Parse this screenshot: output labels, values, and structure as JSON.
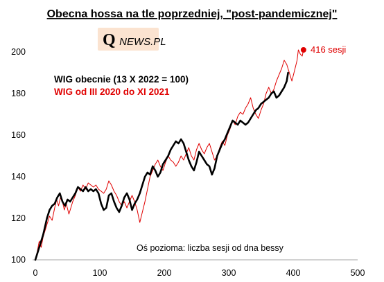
{
  "logo": {
    "initial": "Q",
    "rest": "NEWS.PL",
    "bg": "#fbe3d0"
  },
  "chart_data": {
    "type": "line",
    "title": "Obecna hossa na tle poprzedniej, \"post-pandemicznej\"",
    "xlabel": "",
    "ylabel": "",
    "xlim": [
      0,
      500
    ],
    "ylim": [
      100,
      200
    ],
    "xticks": [
      0,
      100,
      200,
      300,
      400,
      500
    ],
    "yticks": [
      100,
      120,
      140,
      160,
      180,
      200
    ],
    "grid": false,
    "note": "Oś pozioma: liczba sesji od dna bessy",
    "end_label": "416 sesji",
    "series": [
      {
        "name": "WIG od III 2020 do XI 2021",
        "color": "#e00000",
        "width": 1,
        "points": [
          [
            0,
            100
          ],
          [
            3,
            104
          ],
          [
            6,
            109
          ],
          [
            9,
            106
          ],
          [
            12,
            111
          ],
          [
            15,
            114
          ],
          [
            18,
            117
          ],
          [
            22,
            121
          ],
          [
            26,
            119
          ],
          [
            30,
            125
          ],
          [
            33,
            129
          ],
          [
            36,
            126
          ],
          [
            39,
            130
          ],
          [
            42,
            128
          ],
          [
            45,
            124
          ],
          [
            48,
            127
          ],
          [
            52,
            122
          ],
          [
            55,
            125
          ],
          [
            58,
            128
          ],
          [
            62,
            131
          ],
          [
            66,
            135
          ],
          [
            70,
            133
          ],
          [
            74,
            136
          ],
          [
            78,
            134
          ],
          [
            82,
            137
          ],
          [
            86,
            136
          ],
          [
            90,
            135
          ],
          [
            94,
            136
          ],
          [
            98,
            134
          ],
          [
            102,
            133
          ],
          [
            106,
            132
          ],
          [
            110,
            134
          ],
          [
            114,
            138
          ],
          [
            118,
            136
          ],
          [
            122,
            133
          ],
          [
            126,
            131
          ],
          [
            130,
            128
          ],
          [
            134,
            126
          ],
          [
            138,
            128
          ],
          [
            142,
            125
          ],
          [
            146,
            128
          ],
          [
            150,
            131
          ],
          [
            154,
            128
          ],
          [
            158,
            124
          ],
          [
            162,
            118
          ],
          [
            166,
            123
          ],
          [
            170,
            128
          ],
          [
            174,
            134
          ],
          [
            178,
            140
          ],
          [
            182,
            143
          ],
          [
            186,
            146
          ],
          [
            190,
            148
          ],
          [
            194,
            145
          ],
          [
            198,
            143
          ],
          [
            202,
            147
          ],
          [
            206,
            150
          ],
          [
            210,
            148
          ],
          [
            214,
            147
          ],
          [
            218,
            145
          ],
          [
            222,
            147
          ],
          [
            226,
            150
          ],
          [
            230,
            148
          ],
          [
            234,
            151
          ],
          [
            238,
            154
          ],
          [
            242,
            150
          ],
          [
            246,
            148
          ],
          [
            250,
            153
          ],
          [
            254,
            156
          ],
          [
            258,
            153
          ],
          [
            262,
            151
          ],
          [
            266,
            154
          ],
          [
            270,
            156
          ],
          [
            274,
            152
          ],
          [
            278,
            148
          ],
          [
            282,
            150
          ],
          [
            286,
            154
          ],
          [
            290,
            157
          ],
          [
            294,
            155
          ],
          [
            298,
            160
          ],
          [
            302,
            163
          ],
          [
            306,
            167
          ],
          [
            310,
            165
          ],
          [
            314,
            169
          ],
          [
            318,
            171
          ],
          [
            322,
            170
          ],
          [
            326,
            173
          ],
          [
            330,
            175
          ],
          [
            334,
            178
          ],
          [
            338,
            173
          ],
          [
            342,
            170
          ],
          [
            346,
            168
          ],
          [
            350,
            172
          ],
          [
            354,
            175
          ],
          [
            358,
            180
          ],
          [
            362,
            183
          ],
          [
            366,
            180
          ],
          [
            370,
            182
          ],
          [
            374,
            186
          ],
          [
            378,
            189
          ],
          [
            382,
            192
          ],
          [
            386,
            196
          ],
          [
            390,
            194
          ],
          [
            394,
            190
          ],
          [
            398,
            186
          ],
          [
            402,
            191
          ],
          [
            406,
            196
          ],
          [
            408,
            201
          ],
          [
            411,
            199
          ],
          [
            414,
            198
          ],
          [
            416,
            201
          ]
        ],
        "end_point": [
          416,
          201
        ]
      },
      {
        "name": "WIG obecnie (13 X 2022 = 100)",
        "color": "#000000",
        "width": 2.6,
        "points": [
          [
            0,
            100
          ],
          [
            3,
            103
          ],
          [
            6,
            106
          ],
          [
            9,
            109
          ],
          [
            12,
            112
          ],
          [
            15,
            116
          ],
          [
            18,
            120
          ],
          [
            22,
            124
          ],
          [
            26,
            126
          ],
          [
            30,
            127
          ],
          [
            34,
            130
          ],
          [
            38,
            132
          ],
          [
            42,
            128
          ],
          [
            46,
            126
          ],
          [
            50,
            129
          ],
          [
            54,
            128
          ],
          [
            58,
            130
          ],
          [
            62,
            132
          ],
          [
            66,
            135
          ],
          [
            70,
            134
          ],
          [
            74,
            133
          ],
          [
            78,
            135
          ],
          [
            82,
            133
          ],
          [
            86,
            134
          ],
          [
            90,
            133
          ],
          [
            94,
            134
          ],
          [
            98,
            132
          ],
          [
            102,
            127
          ],
          [
            106,
            124
          ],
          [
            110,
            125
          ],
          [
            114,
            131
          ],
          [
            118,
            132
          ],
          [
            122,
            128
          ],
          [
            126,
            125
          ],
          [
            130,
            123
          ],
          [
            134,
            126
          ],
          [
            138,
            130
          ],
          [
            142,
            132
          ],
          [
            146,
            129
          ],
          [
            150,
            124
          ],
          [
            154,
            127
          ],
          [
            158,
            129
          ],
          [
            162,
            132
          ],
          [
            166,
            136
          ],
          [
            170,
            140
          ],
          [
            174,
            142
          ],
          [
            178,
            141
          ],
          [
            182,
            145
          ],
          [
            186,
            143
          ],
          [
            190,
            140
          ],
          [
            194,
            142
          ],
          [
            198,
            146
          ],
          [
            202,
            148
          ],
          [
            206,
            150
          ],
          [
            210,
            153
          ],
          [
            214,
            155
          ],
          [
            218,
            157
          ],
          [
            222,
            156
          ],
          [
            226,
            158
          ],
          [
            230,
            156
          ],
          [
            234,
            152
          ],
          [
            238,
            148
          ],
          [
            242,
            145
          ],
          [
            246,
            143
          ],
          [
            250,
            147
          ],
          [
            254,
            152
          ],
          [
            258,
            150
          ],
          [
            262,
            148
          ],
          [
            266,
            146
          ],
          [
            270,
            145
          ],
          [
            274,
            141
          ],
          [
            278,
            144
          ],
          [
            282,
            150
          ],
          [
            286,
            153
          ],
          [
            290,
            156
          ],
          [
            294,
            158
          ],
          [
            298,
            161
          ],
          [
            302,
            164
          ],
          [
            306,
            167
          ],
          [
            310,
            166
          ],
          [
            314,
            165
          ],
          [
            318,
            167
          ],
          [
            322,
            166
          ],
          [
            326,
            165
          ],
          [
            330,
            166
          ],
          [
            334,
            168
          ],
          [
            338,
            170
          ],
          [
            342,
            172
          ],
          [
            346,
            173
          ],
          [
            350,
            175
          ],
          [
            354,
            176
          ],
          [
            358,
            177
          ],
          [
            362,
            178
          ],
          [
            366,
            180
          ],
          [
            370,
            181
          ],
          [
            374,
            178
          ],
          [
            378,
            179
          ],
          [
            382,
            181
          ],
          [
            386,
            183
          ],
          [
            390,
            186
          ],
          [
            392,
            190
          ]
        ]
      }
    ]
  }
}
